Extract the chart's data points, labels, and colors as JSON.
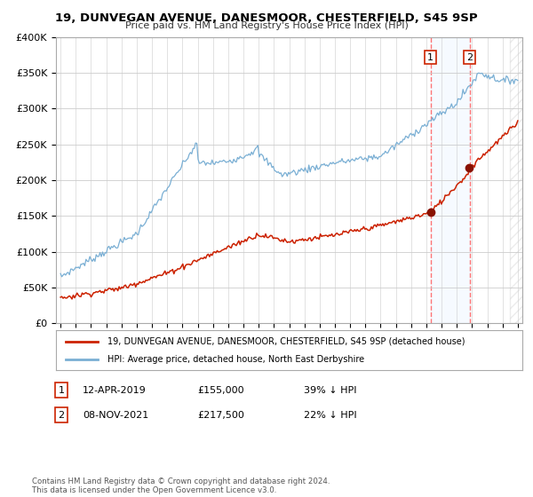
{
  "title": "19, DUNVEGAN AVENUE, DANESMOOR, CHESTERFIELD, S45 9SP",
  "subtitle": "Price paid vs. HM Land Registry's House Price Index (HPI)",
  "hpi_color": "#7aafd4",
  "sold_color": "#cc2200",
  "shade_color": "#ddeeff",
  "dashed_color": "#ff6666",
  "yticks": [
    0,
    50000,
    100000,
    150000,
    200000,
    250000,
    300000,
    350000,
    400000
  ],
  "ytick_labels": [
    "£0",
    "£50K",
    "£100K",
    "£150K",
    "£200K",
    "£250K",
    "£300K",
    "£350K",
    "£400K"
  ],
  "legend1": "19, DUNVEGAN AVENUE, DANESMOOR, CHESTERFIELD, S45 9SP (detached house)",
  "legend2": "HPI: Average price, detached house, North East Derbyshire",
  "footer": "Contains HM Land Registry data © Crown copyright and database right 2024.\nThis data is licensed under the Open Government Licence v3.0.",
  "background_color": "#ffffff",
  "grid_color": "#cccccc",
  "sold1_year": 2019.28,
  "sold1_price": 155000,
  "sold2_year": 2021.85,
  "sold2_price": 217500,
  "ann1_date": "12-APR-2019",
  "ann1_price": "£155,000",
  "ann1_note": "39% ↓ HPI",
  "ann2_date": "08-NOV-2021",
  "ann2_price": "£217,500",
  "ann2_note": "22% ↓ HPI"
}
